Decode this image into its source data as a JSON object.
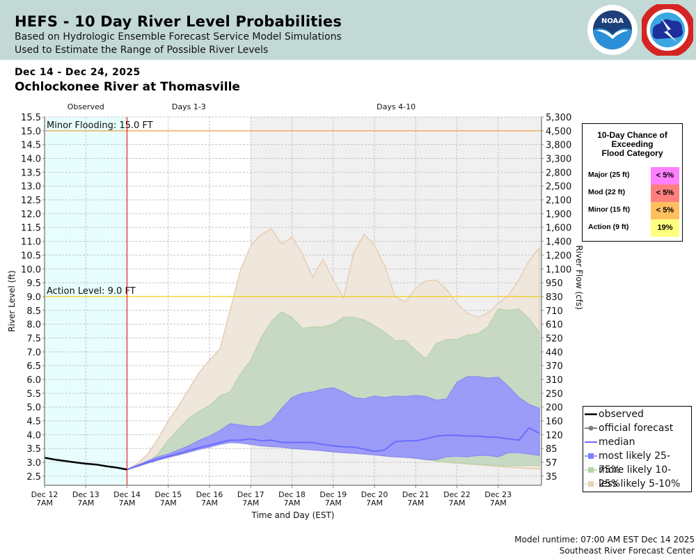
{
  "header": {
    "title": "HEFS - 10 Day River Level Probabilities",
    "subtitle1": "Based on Hydrologic Ensemble Forecast Service Model Simulations",
    "subtitle2": "Used to Estimate the Range of Possible River Levels",
    "logos": [
      "noaa-logo",
      "nws-logo"
    ],
    "noaa_text": "NOAA",
    "nws_text": "NATIONAL WEATHER SERVICE"
  },
  "date_range": "Dec 14 - Dec 24, 2025",
  "station": "Ochlockonee River at Thomasville",
  "flood_box": {
    "title_line1": "10-Day Chance of",
    "title_line2": "Exceeding",
    "title_line3": "Flood Category",
    "rows": [
      {
        "label": "Major (25 ft)",
        "value": "< 5%",
        "color": "#ff80ff"
      },
      {
        "label": "Mod (22 ft)",
        "value": "< 5%",
        "color": "#ff7f7f"
      },
      {
        "label": "Minor (15 ft)",
        "value": "< 5%",
        "color": "#ffbf5f"
      },
      {
        "label": "Action (9 ft)",
        "value": "19%",
        "color": "#ffff7f"
      }
    ]
  },
  "legend": {
    "items": [
      {
        "label": "observed",
        "kind": "line",
        "color": "#000000"
      },
      {
        "label": "official forecast",
        "kind": "dot-line",
        "color": "#808080"
      },
      {
        "label": "median",
        "kind": "line",
        "color": "#6b6bff"
      },
      {
        "label": "most likely 25-75%",
        "kind": "box-line",
        "color": "#7f7fff"
      },
      {
        "label": "more likely 10-25%",
        "kind": "box-line",
        "color": "#a8cfa0"
      },
      {
        "label": "less likely 5-10%",
        "kind": "box-line",
        "color": "#e8d3bd"
      }
    ]
  },
  "footer": {
    "runtime": "Model runtime: 07:00 AM EST Dec 14 2025",
    "center": "Southeast River Forecast Center"
  },
  "chart_data": {
    "type": "area",
    "title": "HEFS - 10 Day River Level Probabilities",
    "xlabel": "Time and Day (EST)",
    "ylabel": "River Level (ft)",
    "y2label": "River Flow (cfs)",
    "ylim": [
      2.17,
      15.5
    ],
    "y_ticks": [
      "2.5",
      "3.0",
      "3.5",
      "4.0",
      "4.5",
      "5.0",
      "5.5",
      "6.0",
      "6.5",
      "7.0",
      "7.5",
      "8.0",
      "8.5",
      "9.0",
      "9.5",
      "10.0",
      "10.5",
      "11.0",
      "11.5",
      "12.0",
      "12.5",
      "13.0",
      "13.5",
      "14.0",
      "14.5",
      "15.0",
      "15.5"
    ],
    "y2_ticks": [
      "35",
      "57",
      "85",
      "120",
      "160",
      "200",
      "250",
      "310",
      "370",
      "440",
      "520",
      "610",
      "710",
      "830",
      "950",
      "1,100",
      "1,200",
      "1,400",
      "1,600",
      "1,900",
      "2,100",
      "2,500",
      "2,800",
      "3,300",
      "3,800",
      "4,500",
      "5,300"
    ],
    "x_ticks": [
      {
        "day": "Dec 12",
        "time": "7AM"
      },
      {
        "day": "Dec 13",
        "time": "7AM"
      },
      {
        "day": "Dec 14",
        "time": "7AM"
      },
      {
        "day": "Dec 15",
        "time": "7AM"
      },
      {
        "day": "Dec 16",
        "time": "7AM"
      },
      {
        "day": "Dec 17",
        "time": "7AM"
      },
      {
        "day": "Dec 18",
        "time": "7AM"
      },
      {
        "day": "Dec 19",
        "time": "7AM"
      },
      {
        "day": "Dec 20",
        "time": "7AM"
      },
      {
        "day": "Dec 21",
        "time": "7AM"
      },
      {
        "day": "Dec 22",
        "time": "7AM"
      },
      {
        "day": "Dec 23",
        "time": "7AM"
      }
    ],
    "x_range_days": [
      0,
      12.05
    ],
    "x_unit": "days since Dec 12 7AM",
    "period_labels": [
      {
        "label": "Observed",
        "start": 0,
        "end": 2
      },
      {
        "label": "Days 1-3",
        "start": 2,
        "end": 5
      },
      {
        "label": "Days 4-10",
        "start": 5,
        "end": 12.05
      }
    ],
    "forecast_start_day": 2,
    "thresholds": [
      {
        "label": "Minor Flooding: 15.0 FT",
        "value": 15.0,
        "color": "#f0a040"
      },
      {
        "label": "Action Level: 9.0 FT",
        "value": 9.0,
        "color": "#f0c800"
      }
    ],
    "observed": {
      "name": "observed",
      "x": [
        0,
        0.25,
        0.5,
        0.75,
        1.0,
        1.25,
        1.5,
        1.75,
        2.0
      ],
      "y": [
        3.17,
        3.1,
        3.05,
        3.0,
        2.95,
        2.92,
        2.86,
        2.81,
        2.74
      ]
    },
    "forecast_x_start": 2,
    "forecast_x_step": 0.25,
    "series": [
      {
        "name": "less likely 5-10% upper",
        "values": [
          2.74,
          2.95,
          3.3,
          3.85,
          4.5,
          5.05,
          5.65,
          6.25,
          6.7,
          7.1,
          8.5,
          9.95,
          10.85,
          11.25,
          11.45,
          10.9,
          11.15,
          10.55,
          9.7,
          10.35,
          9.6,
          8.95,
          10.6,
          11.25,
          10.85,
          10.1,
          9.0,
          8.8,
          9.3,
          9.57,
          9.6,
          9.25,
          8.75,
          8.4,
          8.25,
          8.4,
          8.75,
          9.05,
          9.6,
          10.3,
          10.77
        ]
      },
      {
        "name": "more likely 10-25% upper",
        "values": [
          2.74,
          2.85,
          3.0,
          3.3,
          3.8,
          4.2,
          4.6,
          4.85,
          5.05,
          5.4,
          5.55,
          6.2,
          6.7,
          7.5,
          8.1,
          8.45,
          8.25,
          7.85,
          7.9,
          7.9,
          8.0,
          8.25,
          8.25,
          8.15,
          7.95,
          7.7,
          7.4,
          7.4,
          7.05,
          6.75,
          7.3,
          7.45,
          7.45,
          7.6,
          7.65,
          7.9,
          8.55,
          8.5,
          8.55,
          8.2,
          7.7
        ]
      },
      {
        "name": "most likely 25-75% upper",
        "values": [
          2.74,
          2.9,
          3.05,
          3.2,
          3.3,
          3.45,
          3.6,
          3.8,
          3.95,
          4.15,
          4.4,
          4.35,
          4.3,
          4.3,
          4.5,
          4.95,
          5.35,
          5.5,
          5.55,
          5.65,
          5.7,
          5.55,
          5.35,
          5.3,
          5.4,
          5.35,
          5.4,
          5.38,
          5.42,
          5.38,
          5.25,
          5.3,
          5.9,
          6.1,
          6.1,
          6.05,
          6.08,
          5.75,
          5.35,
          5.1,
          4.95
        ]
      },
      {
        "name": "median",
        "values": [
          2.74,
          2.87,
          3.0,
          3.12,
          3.22,
          3.32,
          3.43,
          3.53,
          3.62,
          3.72,
          3.8,
          3.8,
          3.85,
          3.78,
          3.8,
          3.72,
          3.72,
          3.72,
          3.72,
          3.65,
          3.6,
          3.56,
          3.55,
          3.48,
          3.4,
          3.45,
          3.75,
          3.78,
          3.78,
          3.85,
          3.95,
          3.98,
          3.98,
          3.95,
          3.95,
          3.92,
          3.9,
          3.85,
          3.8,
          4.25,
          4.05
        ]
      },
      {
        "name": "most likely 25-75% lower",
        "values": [
          2.74,
          2.85,
          2.97,
          3.08,
          3.18,
          3.27,
          3.37,
          3.47,
          3.55,
          3.65,
          3.72,
          3.7,
          3.65,
          3.6,
          3.57,
          3.55,
          3.5,
          3.48,
          3.45,
          3.42,
          3.38,
          3.35,
          3.33,
          3.3,
          3.27,
          3.23,
          3.2,
          3.18,
          3.15,
          3.1,
          3.1,
          3.2,
          3.22,
          3.2,
          3.25,
          3.25,
          3.2,
          3.35,
          3.35,
          3.3,
          3.25
        ]
      },
      {
        "name": "more likely 10-25% lower",
        "values": [
          2.74,
          2.85,
          2.97,
          3.08,
          3.18,
          3.27,
          3.37,
          3.47,
          3.55,
          3.65,
          3.72,
          3.7,
          3.65,
          3.6,
          3.57,
          3.55,
          3.5,
          3.48,
          3.45,
          3.42,
          3.38,
          3.35,
          3.33,
          3.3,
          3.27,
          3.23,
          3.2,
          3.18,
          3.15,
          3.1,
          3.05,
          3.02,
          2.98,
          2.95,
          2.93,
          2.9,
          2.88,
          2.87,
          2.88,
          2.89,
          2.88
        ]
      },
      {
        "name": "less likely 5-10% lower",
        "values": [
          2.74,
          2.85,
          2.97,
          3.08,
          3.18,
          3.27,
          3.37,
          3.47,
          3.55,
          3.65,
          3.72,
          3.7,
          3.65,
          3.6,
          3.57,
          3.55,
          3.5,
          3.48,
          3.45,
          3.42,
          3.38,
          3.35,
          3.33,
          3.3,
          3.27,
          3.23,
          3.2,
          3.18,
          3.15,
          3.1,
          3.05,
          3.0,
          2.97,
          2.94,
          2.91,
          2.88,
          2.85,
          2.82,
          2.8,
          2.78,
          2.75
        ]
      }
    ],
    "colors": {
      "less_likely_fill": "#efe6dc",
      "less_likely_line": "#e6cdb1",
      "more_likely_fill": "#c8d9c3",
      "more_likely_line": "#b3d3a6",
      "most_likely_fill": "#9c9cf8",
      "most_likely_line": "#8a8af0",
      "median_line": "#6b6bff",
      "observed_line": "#000000",
      "observed_bg": "#e8fdfd",
      "days4_10_bg": "#f0f0f0",
      "forecast_start_line": "#dd2222"
    },
    "grid": true,
    "legend_position": "bottom-right"
  }
}
